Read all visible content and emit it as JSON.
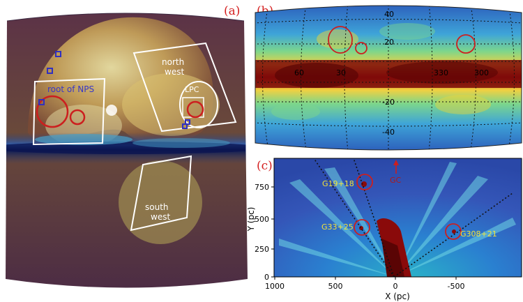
{
  "panel_a": {
    "label": "(a)",
    "regions": {
      "root_nps": "root of NPS",
      "north_west_line1": "north",
      "north_west_line2": "west",
      "lpc": "LPC",
      "south_west_line1": "south",
      "south_west_line2": "west"
    }
  },
  "panel_b": {
    "label": "(b)",
    "lat_labels": [
      "40",
      "20",
      "-20",
      "-40"
    ],
    "lon_labels": [
      "60",
      "30",
      "330",
      "300"
    ]
  },
  "panel_c": {
    "label": "(c)",
    "xlabel": "X (pc)",
    "ylabel": "Y (pc)",
    "x_ticks": [
      "1000",
      "500",
      "0",
      "-500"
    ],
    "y_ticks": [
      "0",
      "250",
      "500",
      "750"
    ],
    "gc_label": "GC",
    "sources": [
      {
        "name": "G19+18"
      },
      {
        "name": "G33+25"
      },
      {
        "name": "G308+21"
      }
    ]
  },
  "colors": {
    "panel_label": "#d42020",
    "circle_red": "#cc1f1f",
    "source_label": "#f2e33a"
  }
}
